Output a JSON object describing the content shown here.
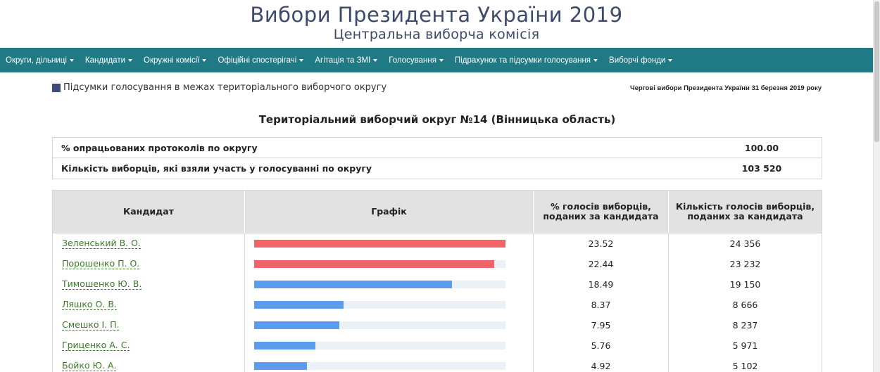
{
  "header": {
    "title": "Вибори Президента України 2019",
    "subtitle": "Центральна виборча комісія"
  },
  "nav": [
    {
      "label": "Округи, дільниці",
      "name": "nav-districts"
    },
    {
      "label": "Кандидати",
      "name": "nav-candidates"
    },
    {
      "label": "Окружні комісії",
      "name": "nav-district-commissions"
    },
    {
      "label": "Офіційні спостерігачі",
      "name": "nav-observers"
    },
    {
      "label": "Агітація та ЗМІ",
      "name": "nav-media"
    },
    {
      "label": "Голосування",
      "name": "nav-voting"
    },
    {
      "label": "Підрахунок та підсумки голосування",
      "name": "nav-results"
    },
    {
      "label": "Виборчі фонди",
      "name": "nav-funds"
    }
  ],
  "breadcrumb": "Підсумки голосування в межах територіального виборчого округу",
  "election_note": "Чергові вибори Президента України 31 березня 2019 року",
  "district_title": "Територіальний виборчий округ №14 (Вінницька область)",
  "summary": {
    "processed_label": "% опрацьованих протоколів по округу",
    "processed_value": "100.00",
    "turnout_label": "Кількість виборців, які взяли участь у голосуванні по округу",
    "turnout_value": "103 520"
  },
  "table": {
    "headers": {
      "candidate": "Кандидат",
      "chart": "Графік",
      "percent": "% голосів виборців, поданих за кандидата",
      "votes": "Кількість голосів виборців, поданих за кандидата"
    },
    "max_percent": 23.52,
    "colors": {
      "top": "#f0646a",
      "other": "#5b9cec"
    },
    "rows": [
      {
        "name": "Зеленський В. О.",
        "percent": "23.52",
        "votes": "24 356",
        "top": true
      },
      {
        "name": "Порошенко П. О.",
        "percent": "22.44",
        "votes": "23 232",
        "top": true
      },
      {
        "name": "Тимошенко Ю. В.",
        "percent": "18.49",
        "votes": "19 150",
        "top": false
      },
      {
        "name": "Ляшко О. В.",
        "percent": "8.37",
        "votes": "8 666",
        "top": false
      },
      {
        "name": "Смешко І. П.",
        "percent": "7.95",
        "votes": "8 237",
        "top": false
      },
      {
        "name": "Гриценко А. С.",
        "percent": "5.76",
        "votes": "5 971",
        "top": false
      },
      {
        "name": "Бойко Ю. А.",
        "percent": "4.92",
        "votes": "5 102",
        "top": false
      }
    ]
  }
}
